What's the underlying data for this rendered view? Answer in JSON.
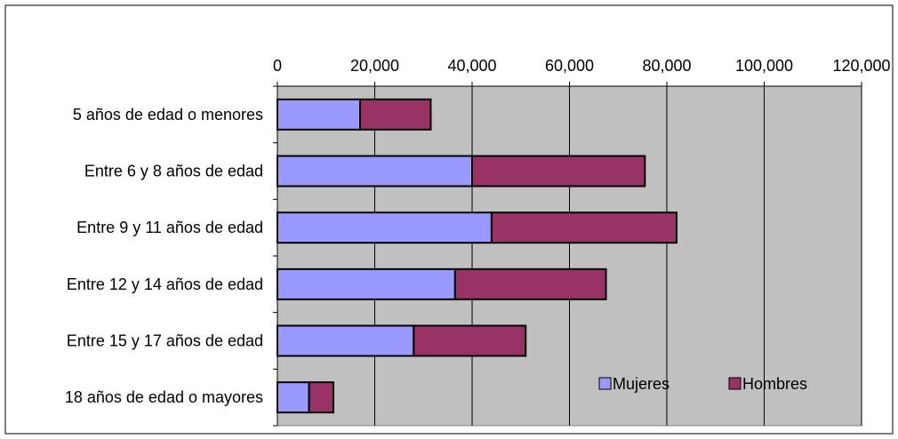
{
  "chart_data": {
    "type": "bar",
    "orientation": "horizontal",
    "stacked": true,
    "title": "",
    "xlabel": "",
    "ylabel": "",
    "categories": [
      "5 años de edad o menores",
      "Entre 6 y 8 años de edad",
      "Entre 9 y 11 años de edad",
      "Entre 12 y 14 años de edad",
      "Entre 15 y 17 años de edad",
      "18 años de edad o mayores"
    ],
    "series": [
      {
        "name": "Mujeres",
        "color": "#9999ff",
        "values": [
          17000,
          40000,
          44000,
          36500,
          28000,
          6500
        ]
      },
      {
        "name": "Hombres",
        "color": "#993366",
        "values": [
          14500,
          35500,
          38000,
          31000,
          23000,
          5000
        ]
      }
    ],
    "xlim": [
      0,
      120000
    ],
    "tick_values": [
      0,
      20000,
      40000,
      60000,
      80000,
      100000,
      120000
    ],
    "tick_labels": [
      "0",
      "20,000",
      "40,000",
      "60,000",
      "80,000",
      "100,000",
      "120,000"
    ],
    "x_axis_position": "top",
    "grid": true,
    "plot_background": "#c0c0c0",
    "legend": {
      "position": "bottom-right",
      "entries": [
        "Mujeres",
        "Hombres"
      ]
    }
  }
}
